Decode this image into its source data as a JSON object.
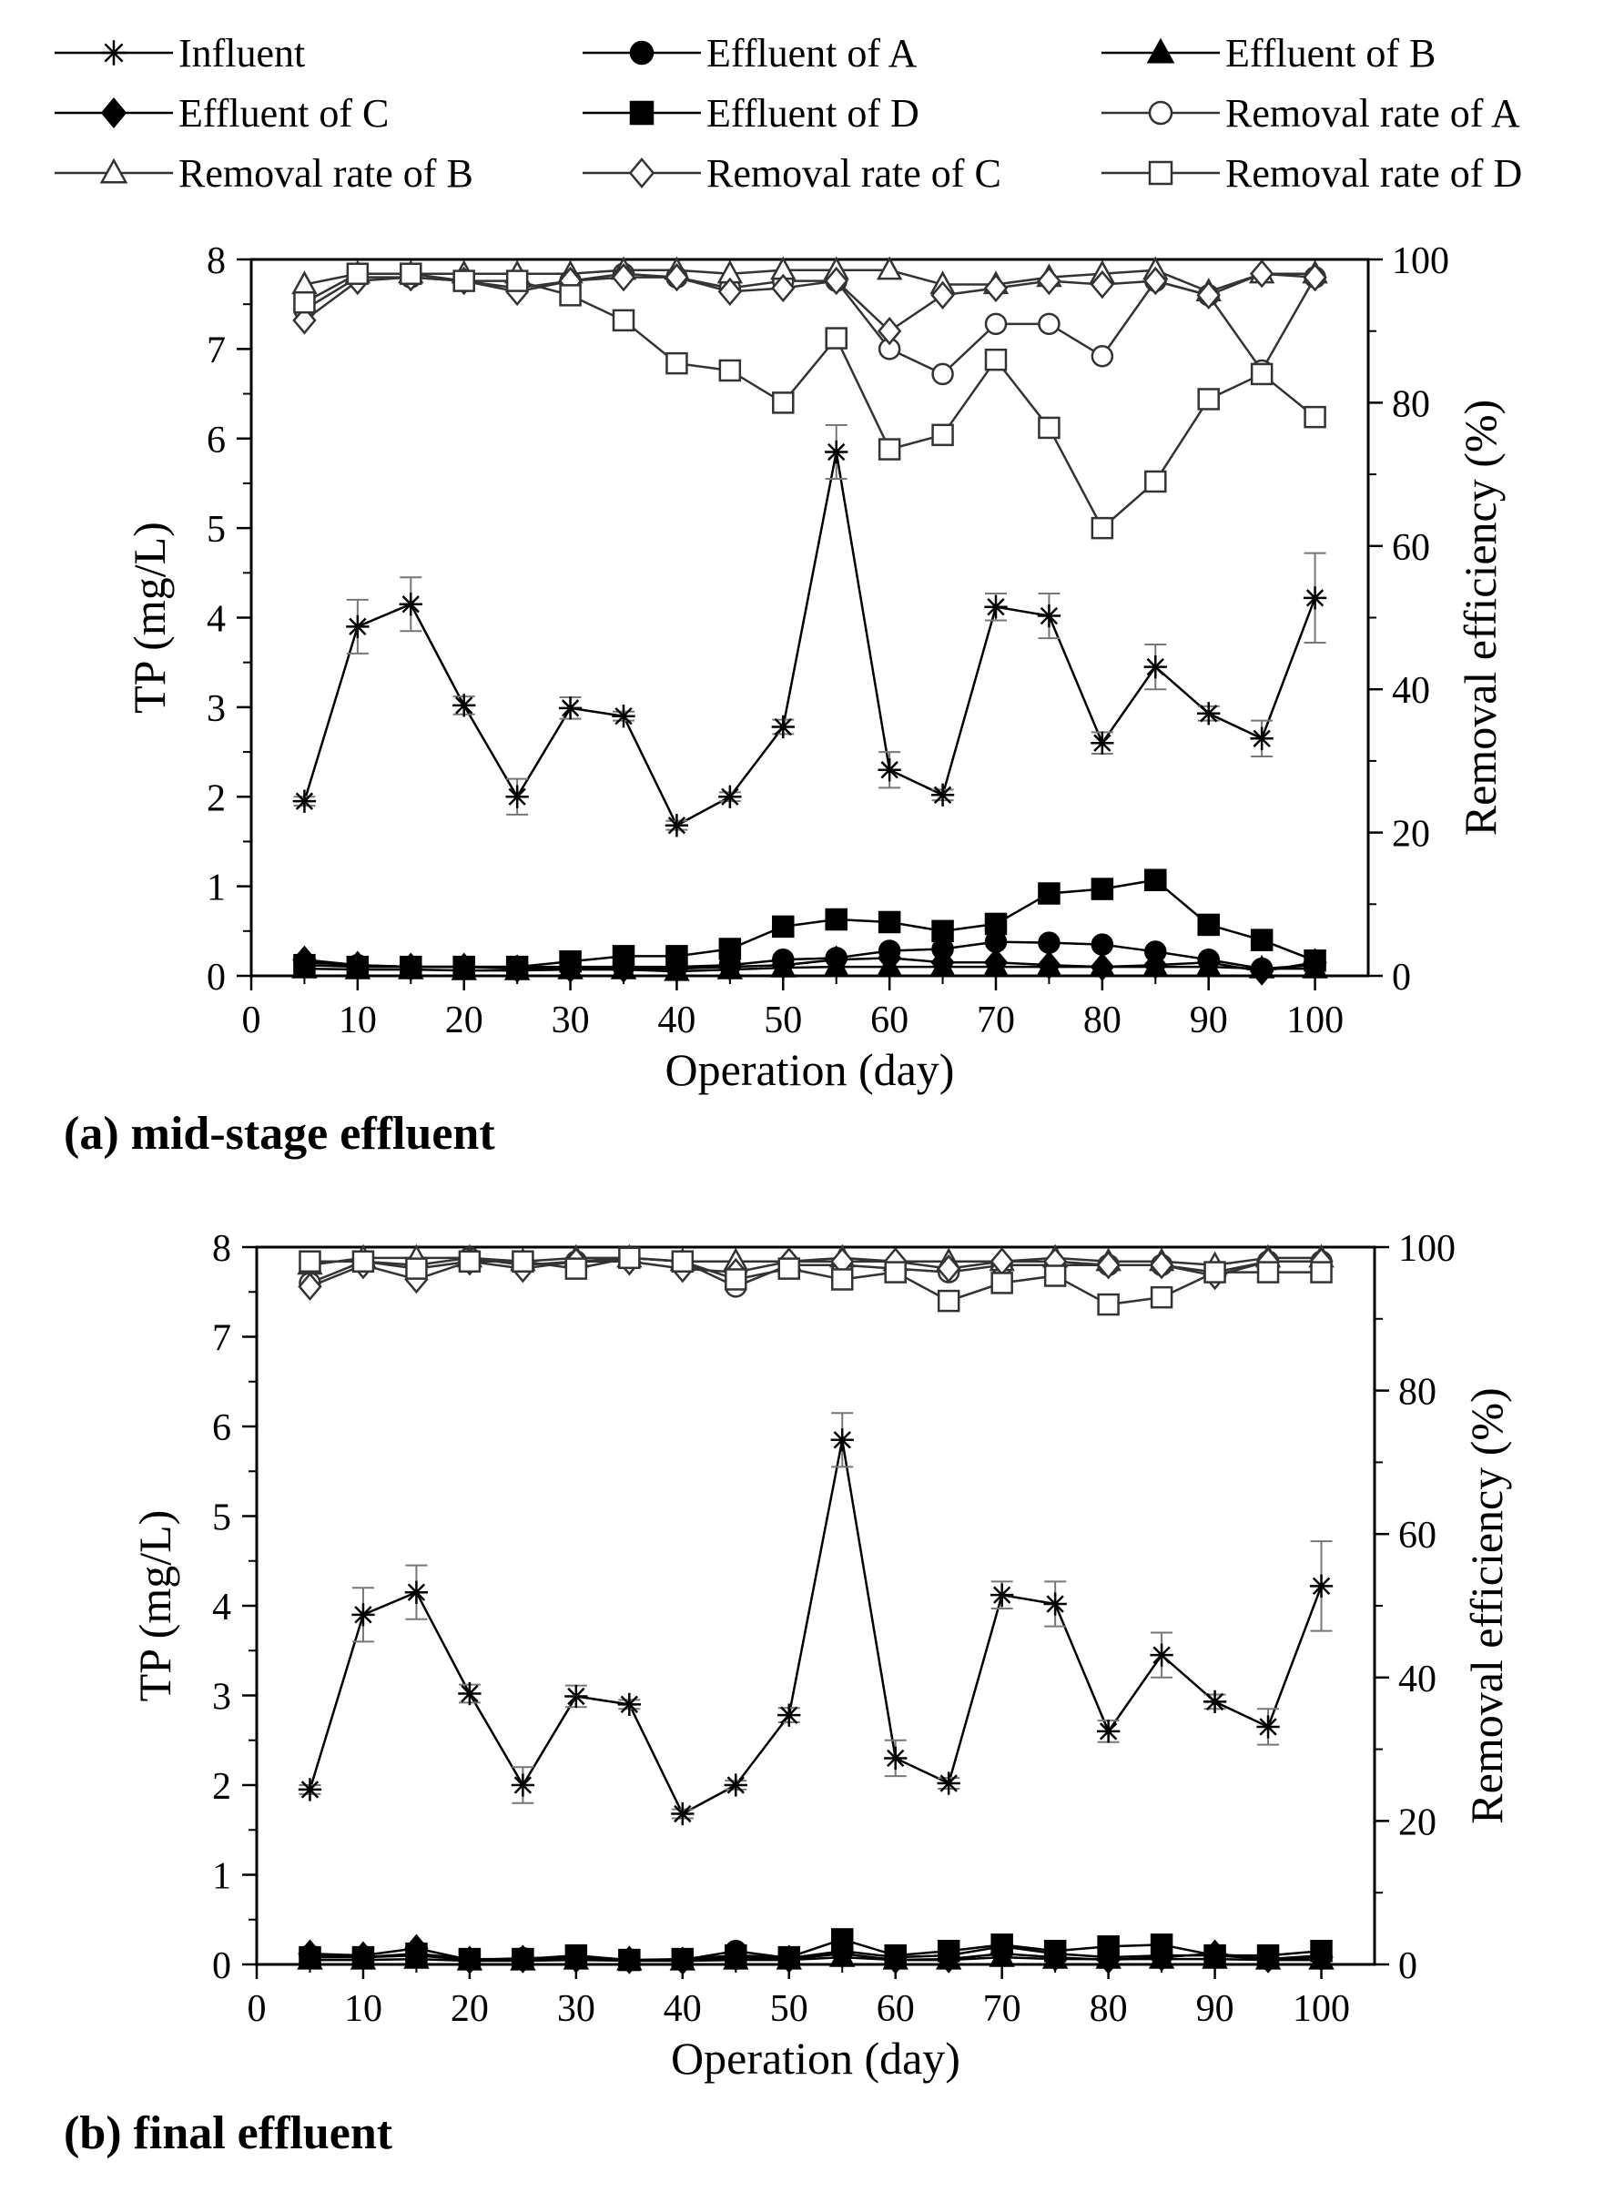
{
  "legend": [
    {
      "label": "Influent",
      "marker": "star",
      "fill": "none",
      "color": "#000000"
    },
    {
      "label": "Effluent of A",
      "marker": "circle",
      "fill": "solid",
      "color": "#000000"
    },
    {
      "label": "Effluent of B",
      "marker": "triangle",
      "fill": "solid",
      "color": "#000000"
    },
    {
      "label": "Effluent of C",
      "marker": "diamond",
      "fill": "solid",
      "color": "#000000"
    },
    {
      "label": "Effluent of D",
      "marker": "square",
      "fill": "solid",
      "color": "#000000"
    },
    {
      "label": "Removal rate of A",
      "marker": "circle",
      "fill": "open",
      "color": "#000000"
    },
    {
      "label": "Removal rate of B",
      "marker": "triangle",
      "fill": "open",
      "color": "#000000"
    },
    {
      "label": "Removal rate of C",
      "marker": "diamond",
      "fill": "open",
      "color": "#000000"
    },
    {
      "label": "Removal rate of D",
      "marker": "square",
      "fill": "open",
      "color": "#000000"
    }
  ],
  "chart_data": [
    {
      "type": "line",
      "caption": "(a) mid-stage effluent",
      "xlabel": "Operation (day)",
      "ylabel": "TP (mg/L)",
      "y2label": "Removal efficiency (%)",
      "xlim": [
        0,
        105
      ],
      "ylim": [
        0,
        8
      ],
      "y2lim": [
        0,
        100
      ],
      "xticks": [
        0,
        10,
        20,
        30,
        40,
        50,
        60,
        70,
        80,
        90,
        100
      ],
      "yticks": [
        0,
        1,
        2,
        3,
        4,
        5,
        6,
        7,
        8
      ],
      "y2ticks": [
        0,
        20,
        40,
        60,
        80,
        100
      ],
      "x": [
        5,
        10,
        15,
        20,
        25,
        30,
        35,
        40,
        45,
        50,
        55,
        60,
        65,
        70,
        75,
        80,
        85,
        90,
        95,
        100
      ],
      "series": [
        {
          "name": "Influent",
          "axis": "left",
          "values": [
            1.95,
            3.9,
            4.15,
            3.02,
            2.0,
            2.99,
            2.9,
            1.68,
            2.0,
            2.78,
            5.85,
            2.3,
            2.02,
            4.12,
            4.02,
            2.6,
            3.45,
            2.93,
            2.65,
            4.22
          ],
          "errors": [
            0.05,
            0.3,
            0.3,
            0.1,
            0.2,
            0.12,
            0.05,
            0.05,
            0.05,
            0.08,
            0.3,
            0.2,
            0.06,
            0.15,
            0.25,
            0.12,
            0.25,
            0.08,
            0.2,
            0.5
          ]
        },
        {
          "name": "Effluent of A",
          "axis": "left",
          "values": [
            0.15,
            0.12,
            0.1,
            0.1,
            0.1,
            0.1,
            0.1,
            0.1,
            0.12,
            0.18,
            0.2,
            0.28,
            0.3,
            0.38,
            0.37,
            0.35,
            0.27,
            0.18,
            0.08,
            0.12
          ]
        },
        {
          "name": "Effluent of B",
          "axis": "left",
          "values": [
            0.08,
            0.07,
            0.07,
            0.06,
            0.06,
            0.07,
            0.07,
            0.05,
            0.07,
            0.09,
            0.1,
            0.1,
            0.1,
            0.1,
            0.1,
            0.1,
            0.1,
            0.1,
            0.08,
            0.08
          ]
        },
        {
          "name": "Effluent of C",
          "axis": "left",
          "values": [
            0.18,
            0.12,
            0.1,
            0.1,
            0.08,
            0.08,
            0.08,
            0.08,
            0.1,
            0.12,
            0.18,
            0.2,
            0.15,
            0.15,
            0.12,
            0.1,
            0.12,
            0.15,
            0.05,
            0.15
          ]
        },
        {
          "name": "Effluent of D",
          "axis": "left",
          "values": [
            0.12,
            0.1,
            0.1,
            0.1,
            0.1,
            0.16,
            0.22,
            0.22,
            0.3,
            0.55,
            0.63,
            0.6,
            0.5,
            0.58,
            0.92,
            0.97,
            1.07,
            0.57,
            0.4,
            0.17
          ]
        },
        {
          "name": "Removal rate of A",
          "axis": "right",
          "values": [
            93,
            97.5,
            97.5,
            97,
            96,
            97,
            98,
            97.5,
            96,
            97,
            97,
            87.5,
            84,
            91,
            91,
            86.5,
            97,
            95,
            84.5,
            97.5
          ]
        },
        {
          "name": "Removal rate of B",
          "axis": "right",
          "values": [
            96.5,
            98,
            98,
            98,
            98,
            98,
            98.5,
            98.5,
            98,
            98.5,
            98.5,
            98.5,
            96.5,
            96.5,
            97.5,
            98,
            98.5,
            95.5,
            98,
            98
          ]
        },
        {
          "name": "Removal rate of C",
          "axis": "right",
          "values": [
            91.5,
            97,
            97.5,
            97,
            95.5,
            97,
            97.5,
            97.5,
            95.5,
            96,
            97,
            90,
            95,
            96,
            97,
            96.5,
            97,
            95,
            98,
            97.5
          ]
        },
        {
          "name": "Removal rate of D",
          "axis": "right",
          "values": [
            94,
            98,
            98,
            97,
            97,
            95,
            91.5,
            85.5,
            84.5,
            80,
            89,
            73.5,
            75.5,
            86,
            76.5,
            62.5,
            69,
            80.5,
            84,
            78
          ]
        }
      ]
    },
    {
      "type": "line",
      "caption": "(b) final effluent",
      "xlabel": "Operation (day)",
      "ylabel": "TP (mg/L)",
      "y2label": "Removal efficiency (%)",
      "xlim": [
        0,
        105
      ],
      "ylim": [
        0,
        8
      ],
      "y2lim": [
        0,
        100
      ],
      "xticks": [
        0,
        10,
        20,
        30,
        40,
        50,
        60,
        70,
        80,
        90,
        100
      ],
      "yticks": [
        0,
        1,
        2,
        3,
        4,
        5,
        6,
        7,
        8
      ],
      "y2ticks": [
        0,
        20,
        40,
        60,
        80,
        100
      ],
      "x": [
        5,
        10,
        15,
        20,
        25,
        30,
        35,
        40,
        45,
        50,
        55,
        60,
        65,
        70,
        75,
        80,
        85,
        90,
        95,
        100
      ],
      "series": [
        {
          "name": "Influent",
          "axis": "left",
          "values": [
            1.95,
            3.9,
            4.15,
            3.02,
            2.0,
            2.99,
            2.9,
            1.68,
            2.0,
            2.78,
            5.85,
            2.3,
            2.02,
            4.12,
            4.02,
            2.6,
            3.45,
            2.93,
            2.65,
            4.22
          ],
          "errors": [
            0.05,
            0.3,
            0.3,
            0.1,
            0.2,
            0.12,
            0.05,
            0.05,
            0.05,
            0.08,
            0.3,
            0.2,
            0.06,
            0.15,
            0.25,
            0.12,
            0.25,
            0.08,
            0.2,
            0.5
          ]
        },
        {
          "name": "Effluent of A",
          "axis": "left",
          "values": [
            0.1,
            0.08,
            0.1,
            0.05,
            0.07,
            0.08,
            0.05,
            0.05,
            0.15,
            0.07,
            0.15,
            0.08,
            0.1,
            0.2,
            0.12,
            0.08,
            0.1,
            0.1,
            0.06,
            0.1
          ]
        },
        {
          "name": "Effluent of B",
          "axis": "left",
          "values": [
            0.05,
            0.05,
            0.06,
            0.04,
            0.04,
            0.05,
            0.04,
            0.04,
            0.05,
            0.05,
            0.08,
            0.05,
            0.05,
            0.08,
            0.06,
            0.06,
            0.06,
            0.06,
            0.05,
            0.05
          ]
        },
        {
          "name": "Effluent of C",
          "axis": "left",
          "values": [
            0.12,
            0.1,
            0.18,
            0.05,
            0.06,
            0.06,
            0.05,
            0.04,
            0.08,
            0.06,
            0.12,
            0.05,
            0.06,
            0.12,
            0.08,
            0.05,
            0.08,
            0.12,
            0.06,
            0.08
          ]
        },
        {
          "name": "Effluent of D",
          "axis": "left",
          "values": [
            0.08,
            0.08,
            0.12,
            0.06,
            0.06,
            0.1,
            0.05,
            0.06,
            0.1,
            0.08,
            0.28,
            0.1,
            0.15,
            0.22,
            0.15,
            0.2,
            0.22,
            0.1,
            0.1,
            0.15
          ]
        },
        {
          "name": "Removal rate of A",
          "axis": "right",
          "values": [
            95,
            98,
            97.5,
            98.5,
            97.5,
            98,
            98.5,
            98,
            94.5,
            97.5,
            97.5,
            97,
            96.5,
            97.5,
            97.5,
            97.5,
            97.5,
            96.5,
            98,
            98
          ]
        },
        {
          "name": "Removal rate of B",
          "axis": "right",
          "values": [
            97.5,
            98.5,
            98.5,
            98.5,
            98,
            98.5,
            98.5,
            98,
            98,
            98,
            98.5,
            98,
            98,
            98,
            98.5,
            98,
            98,
            97.5,
            98.5,
            98.5
          ]
        },
        {
          "name": "Removal rate of C",
          "axis": "right",
          "values": [
            94.5,
            97.5,
            95.5,
            98,
            97,
            98,
            98,
            97,
            96.5,
            98,
            98,
            98,
            97,
            98,
            98,
            97.5,
            97.5,
            96,
            98,
            98
          ]
        },
        {
          "name": "Removal rate of D",
          "axis": "right",
          "values": [
            98,
            98,
            97,
            98,
            98,
            97,
            98.5,
            98,
            95.5,
            97,
            95.5,
            96.5,
            92.5,
            95,
            96,
            92,
            93,
            96.5,
            96.5,
            96.5
          ]
        }
      ]
    }
  ]
}
